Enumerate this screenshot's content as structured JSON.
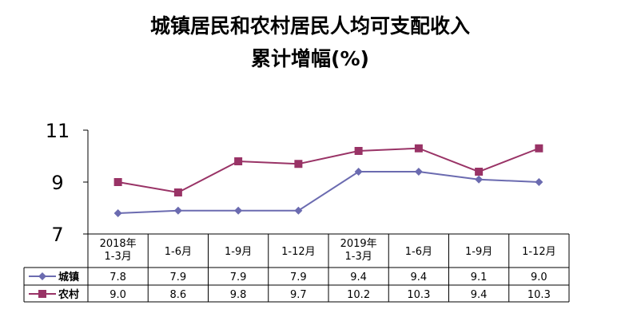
{
  "chart_data": {
    "type": "line",
    "title_line1": "城镇居民和农村居民人均可支配收入",
    "title_line2": "累计增幅(%)",
    "categories": [
      [
        "2018年",
        "1-3月"
      ],
      [
        "1-6月"
      ],
      [
        "1-9月"
      ],
      [
        "1-12月"
      ],
      [
        "2019年",
        "1-3月"
      ],
      [
        "1-6月"
      ],
      [
        "1-9月"
      ],
      [
        "1-12月"
      ]
    ],
    "yticks": [
      "7",
      "9",
      "11"
    ],
    "ylim": [
      7,
      11
    ],
    "legend_placement": "data-table",
    "series": [
      {
        "name": "城镇",
        "color": "#6b6bb0",
        "marker": "diamond",
        "values": [
          7.8,
          7.9,
          7.9,
          7.9,
          9.4,
          9.4,
          9.1,
          9.0
        ],
        "labels": [
          "7.8",
          "7.9",
          "7.9",
          "7.9",
          "9.4",
          "9.4",
          "9.1",
          "9.0"
        ]
      },
      {
        "name": "农村",
        "color": "#993366",
        "marker": "square",
        "values": [
          9.0,
          8.6,
          9.8,
          9.7,
          10.2,
          10.3,
          9.4,
          10.3
        ],
        "labels": [
          "9.0",
          "8.6",
          "9.8",
          "9.7",
          "10.2",
          "10.3",
          "9.4",
          "10.3"
        ]
      }
    ]
  }
}
